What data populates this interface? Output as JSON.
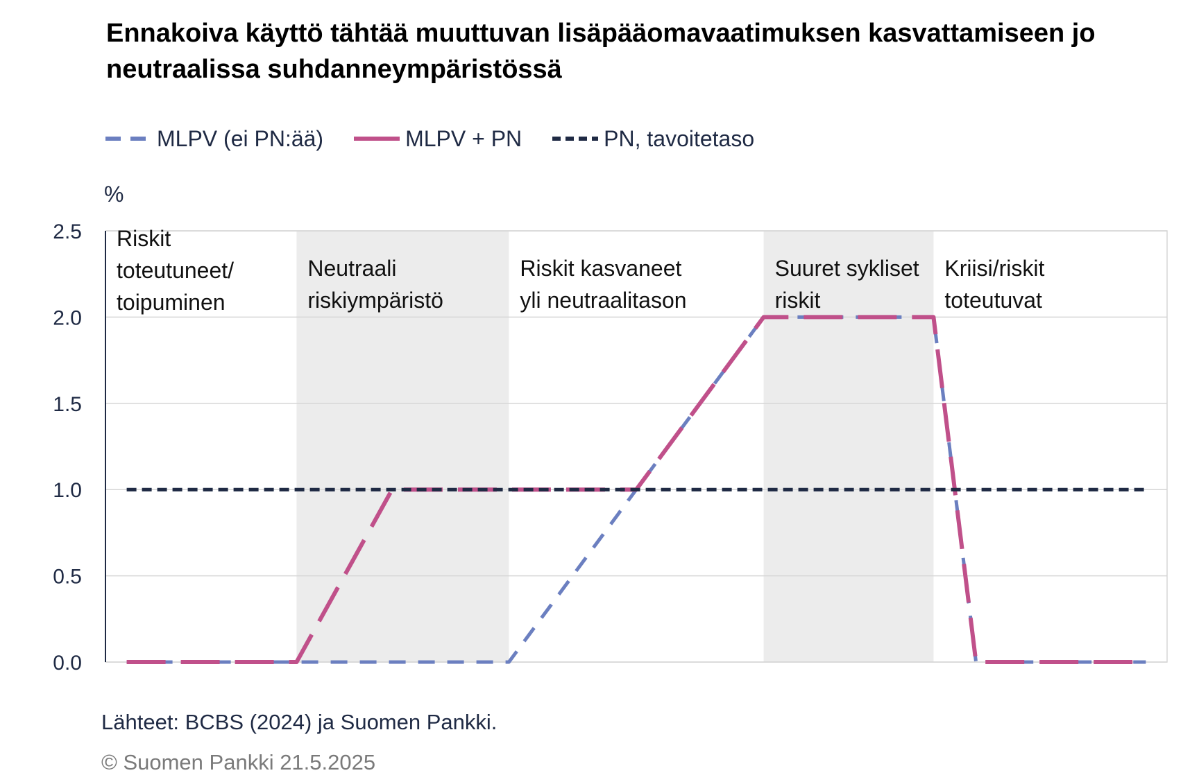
{
  "title": "Ennakoiva käyttö tähtää muuttuvan lisäpääomavaatimuksen kasvattamiseen jo neutraalissa suhdanneympäristössä",
  "legend": [
    {
      "label": "MLPV (ei PN:ää)",
      "color": "#6b7fc0",
      "style": "dash"
    },
    {
      "label": "MLPV + PN",
      "color": "#c0508a",
      "style": "longdash"
    },
    {
      "label": "PN, tavoitetaso",
      "color": "#1f2a44",
      "style": "shortdash"
    }
  ],
  "unit": "%",
  "source": "Lähteet: BCBS (2024) ja Suomen Pankki.",
  "copyright": "© Suomen Pankki 21.5.2025",
  "chart_data": {
    "type": "line",
    "ylim": [
      0,
      2.5
    ],
    "yticks": [
      "0.0",
      "0.5",
      "1.0",
      "1.5",
      "2.0",
      "2.5"
    ],
    "xlim": [
      0,
      100
    ],
    "regions": [
      {
        "lines": [
          "Riskit",
          "toteutuneet/",
          "toipuminen"
        ],
        "x_start": 0,
        "x_end": 18,
        "shaded": false
      },
      {
        "lines": [
          "Neutraali",
          "riskiympäristö"
        ],
        "x_start": 18,
        "x_end": 38,
        "shaded": true
      },
      {
        "lines": [
          "Riskit kasvaneet",
          "yli neutraalitason"
        ],
        "x_start": 38,
        "x_end": 62,
        "shaded": false
      },
      {
        "lines": [
          "Suuret sykliset",
          "riskit"
        ],
        "x_start": 62,
        "x_end": 78,
        "shaded": true
      },
      {
        "lines": [
          "Kriisi/riskit",
          "toteutuvat"
        ],
        "x_start": 78,
        "x_end": 100,
        "shaded": false
      }
    ],
    "series": [
      {
        "name": "MLPV (ei PN:ää)",
        "color": "#6b7fc0",
        "x": [
          2,
          38,
          62,
          78,
          82,
          98
        ],
        "y": [
          0,
          0,
          2.0,
          2.0,
          0,
          0
        ]
      },
      {
        "name": "MLPV + PN",
        "color": "#c0508a",
        "x": [
          2,
          18,
          27,
          50,
          62,
          78,
          82,
          98
        ],
        "y": [
          0,
          0,
          1.0,
          1.0,
          2.0,
          2.0,
          0,
          0
        ]
      },
      {
        "name": "PN, tavoitetaso",
        "color": "#1f2a44",
        "x": [
          2,
          98
        ],
        "y": [
          1.0,
          1.0
        ]
      }
    ]
  }
}
